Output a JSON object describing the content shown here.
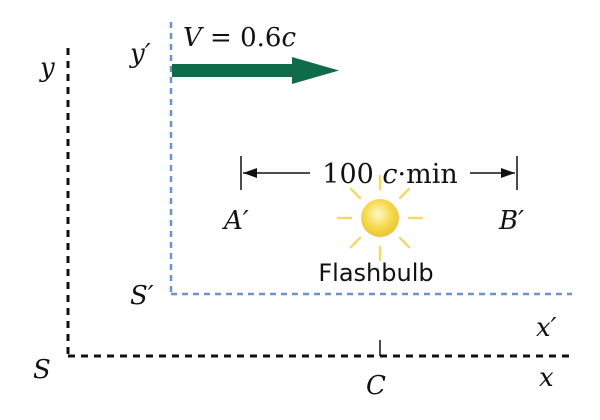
{
  "frames": {
    "S": {
      "origin_label": "S",
      "x_label": "x",
      "y_label": "y",
      "color": "#111111"
    },
    "S_prime": {
      "origin_label": "S′",
      "x_label": "x′",
      "y_label": "y′",
      "color": "#6b93c9"
    }
  },
  "velocity": {
    "symbol": "V",
    "equals": " = 0.6",
    "unit": "c",
    "arrow_color": "#0f6b4a"
  },
  "distance": {
    "value": "100 ",
    "unit_c": "c",
    "unit_rest": "·min"
  },
  "points": {
    "A": "A′",
    "B": "B′",
    "C": "C"
  },
  "flashbulb": {
    "label": "Flashbulb",
    "bulb_color": "#f6d94a",
    "ray_color": "#f3d96a"
  }
}
